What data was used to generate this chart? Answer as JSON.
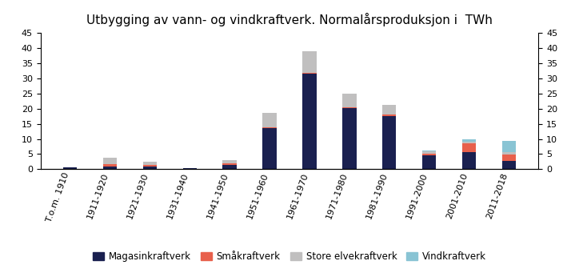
{
  "title": "Utbygging av vann- og vindkraftverk. Normalårsproduksjon i  TWh",
  "categories": [
    "T.o.m. 1910",
    "1911-1920",
    "1921-1930",
    "1931-1940",
    "1941-1950",
    "1951-1960",
    "1961-1970",
    "1971-1980",
    "1981-1990",
    "1991-2000",
    "2001-2010",
    "2011-2018"
  ],
  "magasin": [
    0.6,
    1.0,
    1.0,
    0.5,
    1.5,
    13.5,
    31.5,
    20.3,
    17.5,
    4.5,
    5.7,
    2.8
  ],
  "smakraft": [
    0.0,
    0.8,
    0.5,
    0.0,
    0.5,
    0.3,
    0.3,
    0.2,
    0.5,
    0.5,
    2.8,
    2.0
  ],
  "store_elv": [
    0.0,
    2.0,
    1.0,
    0.0,
    1.0,
    4.8,
    7.0,
    4.5,
    3.3,
    0.8,
    0.5,
    0.8
  ],
  "vind": [
    0.0,
    0.0,
    0.0,
    0.0,
    0.0,
    0.0,
    0.0,
    0.0,
    0.0,
    0.3,
    1.0,
    3.7
  ],
  "color_magasin": "#1a2050",
  "color_smakraft": "#e8604c",
  "color_store_elv": "#c0bfbf",
  "color_vind": "#89c4d4",
  "ylim": [
    0,
    45
  ],
  "yticks": [
    0,
    5,
    10,
    15,
    20,
    25,
    30,
    35,
    40,
    45
  ],
  "legend_labels": [
    "Magasinkraftverk",
    "Småkraftverk",
    "Store elvekraftverk",
    "Vindkraftverk"
  ],
  "background_color": "#ffffff",
  "title_fontsize": 11,
  "tick_fontsize": 8,
  "legend_fontsize": 8.5,
  "bar_width": 0.35
}
